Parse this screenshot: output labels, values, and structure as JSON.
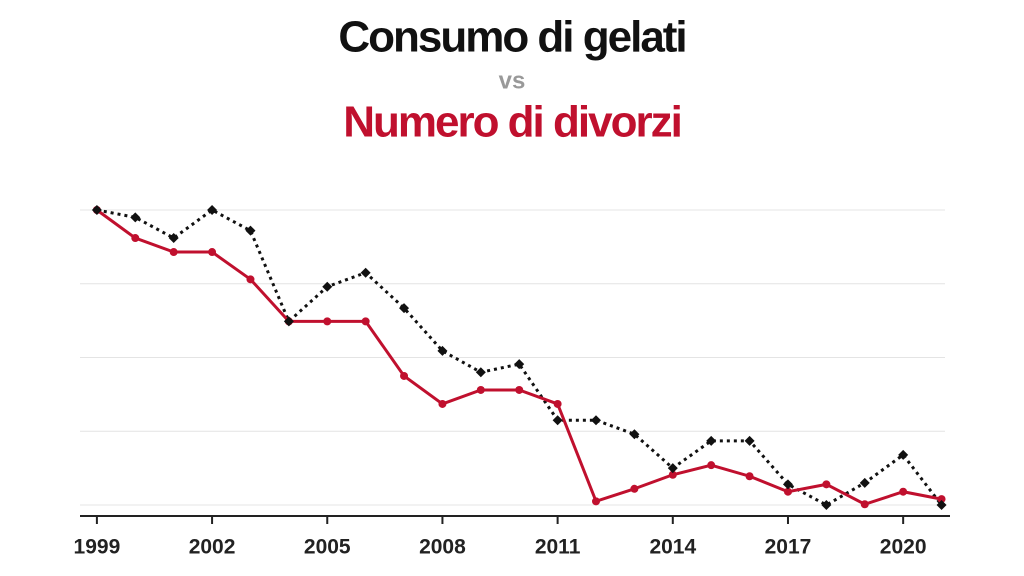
{
  "chart_data": {
    "type": "line",
    "title": "Consumo di gelati",
    "subtitle": "vs",
    "title2": "Numero di divorzi",
    "x": [
      1999,
      2000,
      2001,
      2002,
      2003,
      2004,
      2005,
      2006,
      2007,
      2008,
      2009,
      2010,
      2011,
      2012,
      2013,
      2014,
      2015,
      2016,
      2017,
      2018,
      2019,
      2020,
      2021
    ],
    "series": [
      {
        "color": "#c0102e",
        "style": "solid",
        "marker": "circle",
        "values": [
          4.0,
          3.62,
          3.43,
          3.43,
          3.06,
          2.49,
          2.49,
          2.49,
          1.75,
          1.37,
          1.56,
          1.56,
          1.37,
          0.05,
          0.22,
          0.41,
          0.54,
          0.39,
          0.18,
          0.28,
          0.01,
          0.18,
          0.08
        ]
      },
      {
        "color": "#111111",
        "style": "dotted",
        "marker": "diamond",
        "values": [
          4.0,
          3.9,
          3.62,
          4.0,
          3.72,
          2.49,
          2.96,
          3.15,
          2.67,
          2.09,
          1.8,
          1.91,
          1.15,
          1.15,
          0.96,
          0.5,
          0.87,
          0.87,
          0.28,
          0.0,
          0.3,
          0.68,
          0.0
        ]
      }
    ],
    "xlim": [
      1998.56,
      2021.22
    ],
    "xticks": [
      1999,
      2002,
      2005,
      2008,
      2011,
      2014,
      2017,
      2020
    ],
    "ylim": [
      0,
      4
    ],
    "yticks": [
      0,
      1,
      2,
      3,
      4
    ],
    "grid": true
  }
}
